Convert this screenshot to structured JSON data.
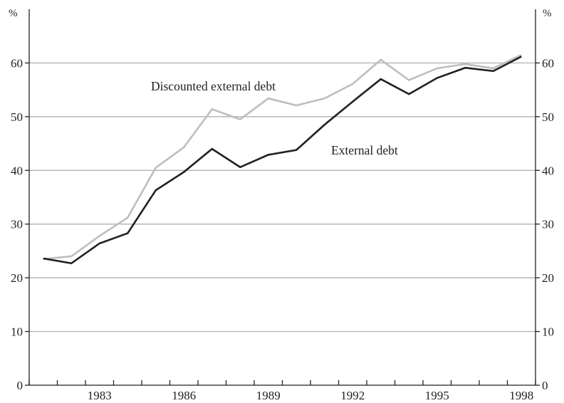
{
  "chart_data": {
    "type": "line",
    "x": [
      1981,
      1982,
      1983,
      1984,
      1985,
      1986,
      1987,
      1988,
      1989,
      1990,
      1991,
      1992,
      1993,
      1994,
      1995,
      1996,
      1997,
      1998
    ],
    "x_tick_labels": [
      "1983",
      "1986",
      "1989",
      "1992",
      "1995",
      "1998"
    ],
    "x_tick_values": [
      1983,
      1986,
      1989,
      1992,
      1995,
      1998
    ],
    "xlim": [
      1980.5,
      1998.5
    ],
    "ylim": [
      0,
      70
    ],
    "y_ticks": [
      0,
      10,
      20,
      30,
      40,
      50,
      60
    ],
    "y_tick_labels": [
      "0",
      "10",
      "20",
      "30",
      "40",
      "50",
      "60"
    ],
    "yunit_left": "%",
    "yunit_right": "%",
    "grid": true,
    "series": [
      {
        "name": "Discounted external debt",
        "color": "#bcbec0",
        "values": [
          23.5,
          24.0,
          27.8,
          31.2,
          40.5,
          44.3,
          51.4,
          49.5,
          53.4,
          52.1,
          53.4,
          56.1,
          60.6,
          56.8,
          59.0,
          59.8,
          59.0,
          61.5
        ]
      },
      {
        "name": "External debt",
        "color": "#231f20",
        "values": [
          23.6,
          22.7,
          26.4,
          28.3,
          36.3,
          39.7,
          44.0,
          40.6,
          42.9,
          43.8,
          48.5,
          52.8,
          57.0,
          54.2,
          57.2,
          59.1,
          58.5,
          61.2
        ]
      }
    ],
    "annotations": [
      {
        "text": "Discounted external debt"
      },
      {
        "text": "External debt"
      }
    ]
  }
}
